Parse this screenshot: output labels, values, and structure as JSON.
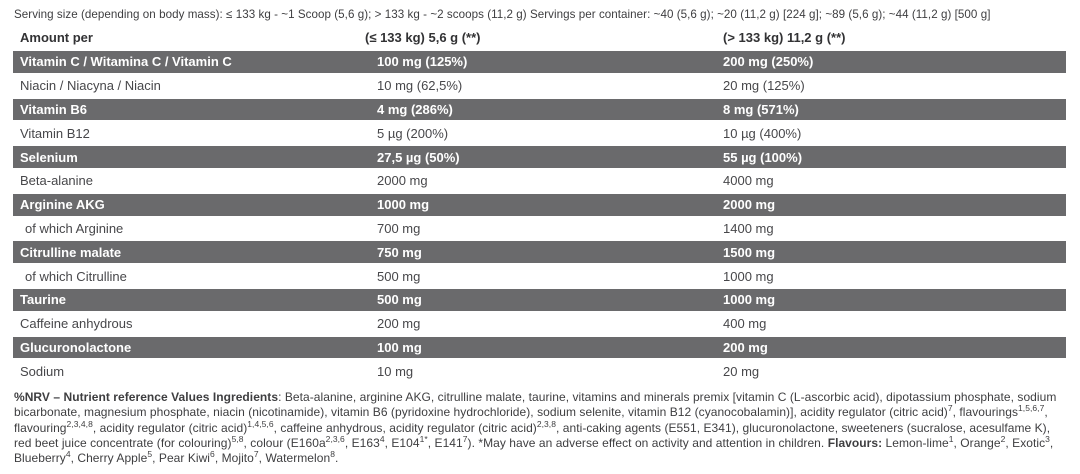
{
  "colors": {
    "row_highlight_bg": "#6a6a6c",
    "row_highlight_text": "#ffffff",
    "body_text": "#3e3e40"
  },
  "serving_line": "Serving size (depending on body mass): ≤ 133 kg - ~1 Scoop (5,6 g); > 133 kg - ~2 scoops (11,2 g) Servings per container: ~40 (5,6 g); ~20 (11,2 g) [224 g]; ~89 (5,6 g); ~44 (11,2 g) [500 g]",
  "table": {
    "col_headers": [
      "Amount per",
      "(≤ 133 kg) 5,6 g (**)",
      "(> 133 kg) 11,2 g (**)"
    ],
    "rows": [
      {
        "name": "Vitamin C / Witamina C / Vitamin C",
        "v1": "100 mg (125%)",
        "v2": "200 mg (250%)"
      },
      {
        "name": "Niacin / Niacyna / Niacin",
        "v1": "10 mg (62,5%)",
        "v2": "20 mg (125%)"
      },
      {
        "name": "Vitamin B6",
        "v1": "4 mg (286%)",
        "v2": "8 mg (571%)"
      },
      {
        "name": "Vitamin B12",
        "v1": "5 µg (200%)",
        "v2": "10 µg (400%)"
      },
      {
        "name": "Selenium",
        "v1": "27,5 µg (50%)",
        "v2": "55 µg (100%)"
      },
      {
        "name": "Beta-alanine",
        "v1": "2000 mg",
        "v2": "4000 mg"
      },
      {
        "name": "Arginine AKG",
        "v1": "1000 mg",
        "v2": "2000 mg"
      },
      {
        "name": "of which Arginine",
        "v1": "700 mg",
        "v2": "1400 mg"
      },
      {
        "name": "Citrulline malate",
        "v1": "750 mg",
        "v2": "1500 mg"
      },
      {
        "name": "of which Citrulline",
        "v1": "500 mg",
        "v2": "1000 mg"
      },
      {
        "name": "Taurine",
        "v1": "500 mg",
        "v2": "1000 mg"
      },
      {
        "name": "Caffeine anhydrous",
        "v1": "200 mg",
        "v2": "400 mg"
      },
      {
        "name": "Glucuronolactone",
        "v1": "100 mg",
        "v2": "200 mg"
      },
      {
        "name": "Sodium",
        "v1": "10 mg",
        "v2": "20 mg"
      }
    ]
  },
  "footnote_segments": [
    {
      "t": "%NRV – Nutrient reference Values Ingredients",
      "b": true
    },
    {
      "t": ": Beta-alanine, arginine AKG, citrulline malate, taurine, vitamins and minerals premix [vitamin C (L-ascorbic acid), dipotassium phosphate, sodium bicarbonate, magnesium phosphate, niacin (nicotinamide), vitamin B6 (pyridoxine hydrochloride), sodium selenite, vitamin B12 (cyanocobalamin)], acidity regulator (citric acid)"
    },
    {
      "t": "7",
      "sup": true
    },
    {
      "t": ", flavourings"
    },
    {
      "t": "1,5,6,7",
      "sup": true
    },
    {
      "t": ", flavouring"
    },
    {
      "t": "2,3,4,8",
      "sup": true
    },
    {
      "t": ", acidity regulator (citric acid)"
    },
    {
      "t": "1,4,5,6",
      "sup": true
    },
    {
      "t": ", caffeine anhydrous, acidity regulator (citric acid)"
    },
    {
      "t": "2,3,8",
      "sup": true
    },
    {
      "t": ", anti-caking agents (E551, E341), glucuronolactone, sweeteners (sucralose, acesulfame K), red beet juice concentrate (for colouring)"
    },
    {
      "t": "5,8",
      "sup": true
    },
    {
      "t": ", colour (E160a"
    },
    {
      "t": "2,3,6",
      "sup": true
    },
    {
      "t": ", E163"
    },
    {
      "t": "4",
      "sup": true
    },
    {
      "t": ", E104"
    },
    {
      "t": "1*",
      "sup": true
    },
    {
      "t": ", E141"
    },
    {
      "t": "7",
      "sup": true
    },
    {
      "t": "). *May have an adverse effect on activity and attention in children. "
    },
    {
      "t": "Flavours:",
      "b": true
    },
    {
      "t": " Lemon-lime"
    },
    {
      "t": "1",
      "sup": true
    },
    {
      "t": ", Orange"
    },
    {
      "t": "2",
      "sup": true
    },
    {
      "t": ", Exotic"
    },
    {
      "t": "3",
      "sup": true
    },
    {
      "t": ", Blueberry"
    },
    {
      "t": "4",
      "sup": true
    },
    {
      "t": ", Cherry Apple"
    },
    {
      "t": "5",
      "sup": true
    },
    {
      "t": ", Pear Kiwi"
    },
    {
      "t": "6",
      "sup": true
    },
    {
      "t": ", Mojito"
    },
    {
      "t": "7",
      "sup": true
    },
    {
      "t": ", Watermelon"
    },
    {
      "t": "8",
      "sup": true
    },
    {
      "t": "."
    }
  ]
}
